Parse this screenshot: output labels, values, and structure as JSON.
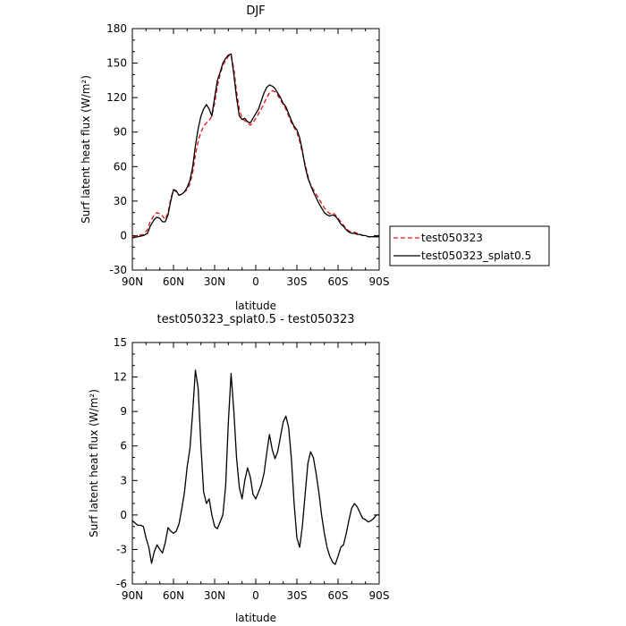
{
  "chart_data": [
    {
      "type": "line",
      "title": "DJF",
      "xlabel": "latitude",
      "ylabel": "Surf latent heat flux (W/m²)",
      "xlim": [
        90,
        -90
      ],
      "ylim": [
        -30,
        180
      ],
      "xticks": [
        90,
        60,
        30,
        0,
        -30,
        -60,
        -90
      ],
      "xtick_labels": [
        "90N",
        "60N",
        "30N",
        "0",
        "30S",
        "60S",
        "90S"
      ],
      "yticks": [
        -30,
        0,
        30,
        60,
        90,
        120,
        150,
        180
      ],
      "ytick_labels": [
        "-30",
        "0",
        "30",
        "60",
        "90",
        "120",
        "150",
        "180"
      ],
      "legend": "right-outside",
      "series": [
        {
          "name": "test050323",
          "color": "#e01010",
          "dash": "dashed",
          "x": [
            90,
            86,
            82,
            79,
            77,
            74,
            72,
            70,
            68,
            66,
            64,
            62,
            60,
            58,
            56,
            54,
            52,
            50,
            48,
            46,
            44,
            42,
            40,
            38,
            36,
            34,
            32,
            30,
            28,
            26,
            24,
            22,
            20,
            18,
            16,
            14,
            12,
            10,
            8,
            6,
            4,
            2,
            0,
            -2,
            -4,
            -6,
            -8,
            -10,
            -12,
            -14,
            -16,
            -18,
            -20,
            -22,
            -24,
            -26,
            -28,
            -30,
            -32,
            -34,
            -36,
            -38,
            -40,
            -42,
            -44,
            -46,
            -48,
            -50,
            -52,
            -54,
            -56,
            -58,
            -60,
            -62,
            -64,
            -66,
            -68,
            -70,
            -72,
            -74,
            -76,
            -78,
            -80,
            -82,
            -84,
            -86,
            -88,
            -90
          ],
          "y": [
            -1,
            0,
            1,
            5,
            12,
            18,
            20,
            19,
            17,
            14,
            20,
            32,
            40,
            38,
            35,
            36,
            38,
            40,
            45,
            55,
            70,
            82,
            90,
            95,
            98,
            100,
            104,
            115,
            130,
            140,
            148,
            152,
            156,
            157,
            145,
            125,
            110,
            102,
            100,
            98,
            96,
            98,
            102,
            106,
            110,
            115,
            120,
            124,
            126,
            125,
            122,
            118,
            114,
            110,
            104,
            98,
            94,
            90,
            82,
            72,
            62,
            52,
            44,
            40,
            36,
            32,
            28,
            24,
            21,
            19,
            20,
            18,
            15,
            12,
            9,
            6,
            4,
            3,
            3,
            2,
            1,
            0,
            0,
            -1,
            -1,
            -1,
            -1,
            -1
          ]
        },
        {
          "name": "test050323_splat0.5",
          "color": "#000000",
          "dash": "solid",
          "x": [
            90,
            86,
            82,
            79,
            77,
            74,
            72,
            70,
            68,
            66,
            64,
            62,
            60,
            58,
            56,
            54,
            52,
            50,
            48,
            46,
            44,
            42,
            40,
            38,
            36,
            34,
            32,
            30,
            28,
            26,
            24,
            22,
            20,
            18,
            16,
            14,
            12,
            10,
            8,
            6,
            4,
            2,
            0,
            -2,
            -4,
            -6,
            -8,
            -10,
            -12,
            -14,
            -16,
            -18,
            -20,
            -22,
            -24,
            -26,
            -28,
            -30,
            -32,
            -34,
            -36,
            -38,
            -40,
            -42,
            -44,
            -46,
            -48,
            -50,
            -52,
            -54,
            -56,
            -58,
            -60,
            -62,
            -64,
            -66,
            -68,
            -70,
            -72,
            -74,
            -76,
            -78,
            -80,
            -82,
            -84,
            -86,
            -88,
            -90
          ],
          "y": [
            -2,
            -1,
            0,
            2,
            8,
            14,
            16,
            15,
            12,
            12,
            18,
            30,
            40,
            39,
            35,
            36,
            38,
            42,
            48,
            60,
            78,
            93,
            104,
            110,
            114,
            110,
            104,
            120,
            135,
            142,
            150,
            154,
            157,
            158,
            140,
            120,
            104,
            101,
            102,
            99,
            98,
            102,
            106,
            110,
            117,
            124,
            129,
            131,
            130,
            128,
            124,
            120,
            115,
            112,
            106,
            100,
            95,
            92,
            85,
            74,
            60,
            50,
            44,
            38,
            33,
            28,
            24,
            20,
            18,
            17,
            18,
            17,
            14,
            10,
            8,
            5,
            3,
            2,
            2,
            1,
            1,
            0,
            0,
            -1,
            -1,
            -1,
            -1,
            -1
          ]
        }
      ]
    },
    {
      "type": "line",
      "title": "test050323_splat0.5 - test050323",
      "xlabel": "latitude",
      "ylabel": "Surf latent heat flux (W/m²)",
      "xlim": [
        90,
        -90
      ],
      "ylim": [
        -6,
        15
      ],
      "xticks": [
        90,
        60,
        30,
        0,
        -30,
        -60,
        -90
      ],
      "xtick_labels": [
        "90N",
        "60N",
        "30N",
        "0",
        "30S",
        "60S",
        "90S"
      ],
      "yticks": [
        -6,
        -3,
        0,
        3,
        6,
        9,
        12,
        15
      ],
      "ytick_labels": [
        "-6",
        "-3",
        "0",
        "3",
        "6",
        "9",
        "12",
        "15"
      ],
      "series": [
        {
          "color": "#000000",
          "dash": "solid",
          "x": [
            90,
            88,
            86,
            84,
            82,
            80,
            78,
            76,
            74,
            72,
            70,
            68,
            66,
            64,
            62,
            60,
            58,
            56,
            54,
            52,
            50,
            48,
            46,
            44,
            42,
            40,
            38,
            36,
            34,
            32,
            30,
            28,
            26,
            24,
            22,
            20,
            18,
            16,
            14,
            12,
            10,
            8,
            6,
            4,
            2,
            0,
            -2,
            -4,
            -6,
            -8,
            -10,
            -12,
            -14,
            -16,
            -18,
            -20,
            -22,
            -24,
            -26,
            -28,
            -30,
            -32,
            -34,
            -36,
            -38,
            -40,
            -42,
            -44,
            -46,
            -48,
            -50,
            -52,
            -54,
            -56,
            -58,
            -60,
            -62,
            -64,
            -66,
            -68,
            -70,
            -72,
            -74,
            -76,
            -78,
            -80,
            -82,
            -84,
            -86,
            -88,
            -90
          ],
          "y": [
            -0.5,
            -0.7,
            -0.9,
            -0.9,
            -1.0,
            -2.0,
            -2.8,
            -4.2,
            -3.2,
            -2.6,
            -3.0,
            -3.3,
            -2.4,
            -1.1,
            -1.4,
            -1.6,
            -1.4,
            -0.8,
            0.5,
            2.0,
            4.2,
            5.8,
            9.0,
            12.6,
            11.0,
            6.0,
            2.0,
            1.0,
            1.4,
            0.0,
            -1.0,
            -1.2,
            -0.6,
            0.0,
            2.5,
            8.0,
            12.3,
            9.0,
            5.0,
            2.4,
            1.4,
            3.0,
            4.1,
            3.3,
            1.8,
            1.4,
            2.0,
            2.6,
            3.6,
            5.4,
            7.0,
            5.7,
            4.9,
            5.5,
            6.8,
            8.1,
            8.6,
            7.6,
            4.8,
            1.0,
            -2.0,
            -2.8,
            -1.0,
            1.8,
            4.5,
            5.5,
            5.0,
            3.6,
            2.0,
            0.0,
            -1.6,
            -2.8,
            -3.6,
            -4.1,
            -4.3,
            -3.6,
            -2.8,
            -2.6,
            -1.6,
            -0.4,
            0.6,
            1.0,
            0.7,
            0.2,
            -0.3,
            -0.4,
            -0.6,
            -0.5,
            -0.3,
            0.0,
            0.0
          ]
        }
      ]
    }
  ]
}
